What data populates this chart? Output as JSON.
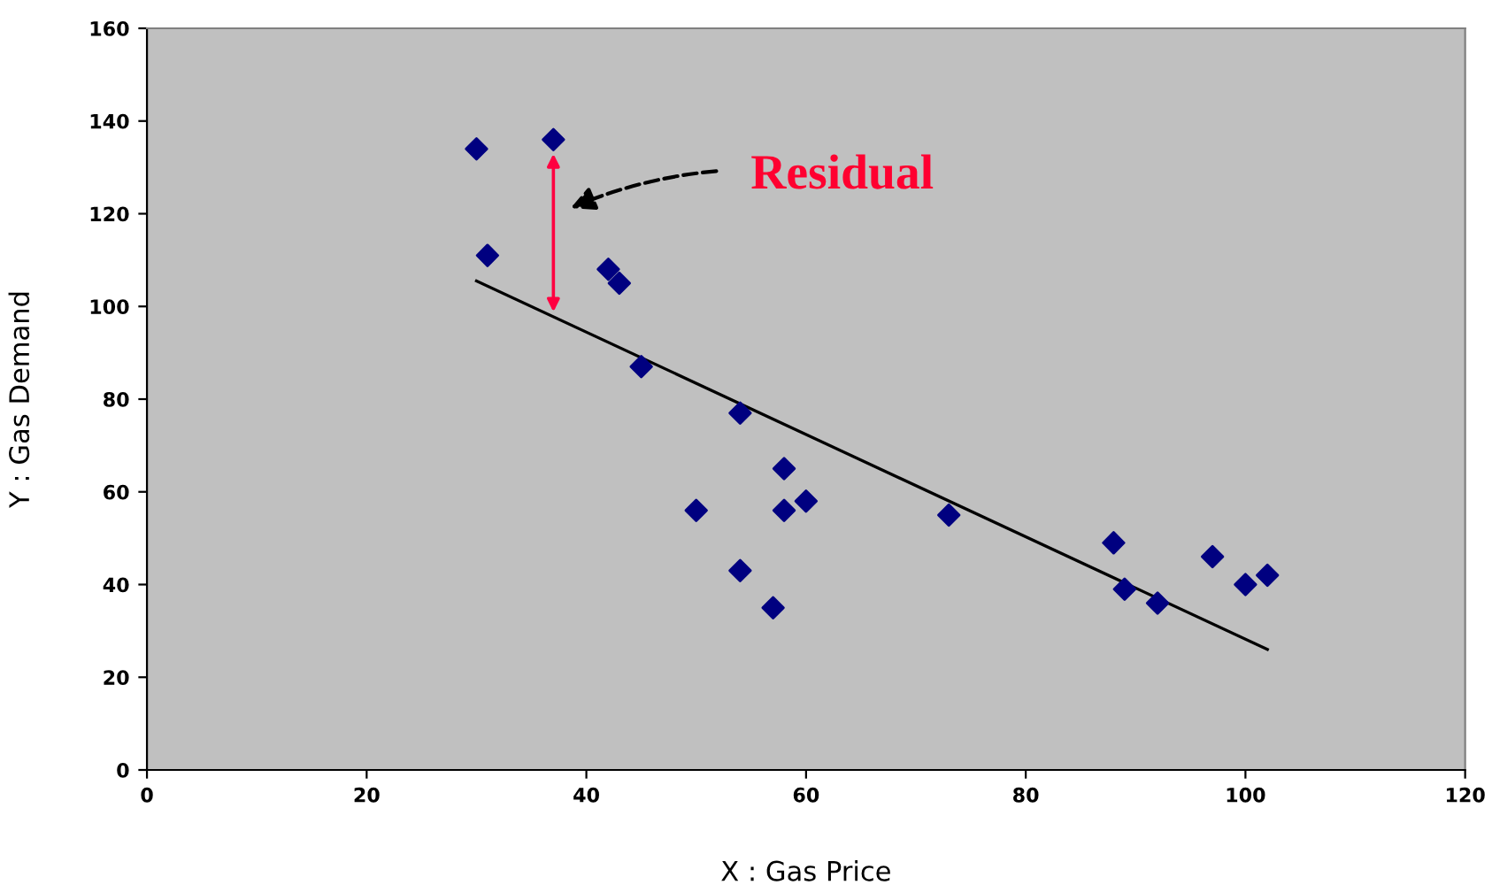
{
  "chart_data": {
    "type": "scatter",
    "xlabel": "X : Gas Price",
    "ylabel": "Y : Gas Demand",
    "x": [
      30,
      31,
      37,
      42,
      43,
      45,
      54,
      50,
      54,
      58,
      58,
      60,
      57,
      73,
      88,
      89,
      92,
      97,
      100,
      102
    ],
    "series": [
      {
        "marker": "diamond",
        "color": "#000080",
        "values": [
          134,
          111,
          136,
          108,
          105,
          87,
          77,
          56,
          43,
          65,
          56,
          58,
          35,
          55,
          49,
          39,
          36,
          46,
          40,
          42
        ]
      },
      {
        "type": "line",
        "color": "#000000",
        "x": [
          30,
          102
        ],
        "values": [
          105.5,
          26
        ]
      }
    ],
    "annotations": [
      "Residual"
    ],
    "xlim": [
      0,
      120
    ],
    "xticks": [
      0,
      20,
      40,
      60,
      80,
      100,
      120
    ],
    "ylim": [
      0,
      160
    ],
    "yticks": [
      0,
      20,
      40,
      60,
      80,
      100,
      120,
      140,
      160
    ],
    "grid": false,
    "legend": false
  }
}
